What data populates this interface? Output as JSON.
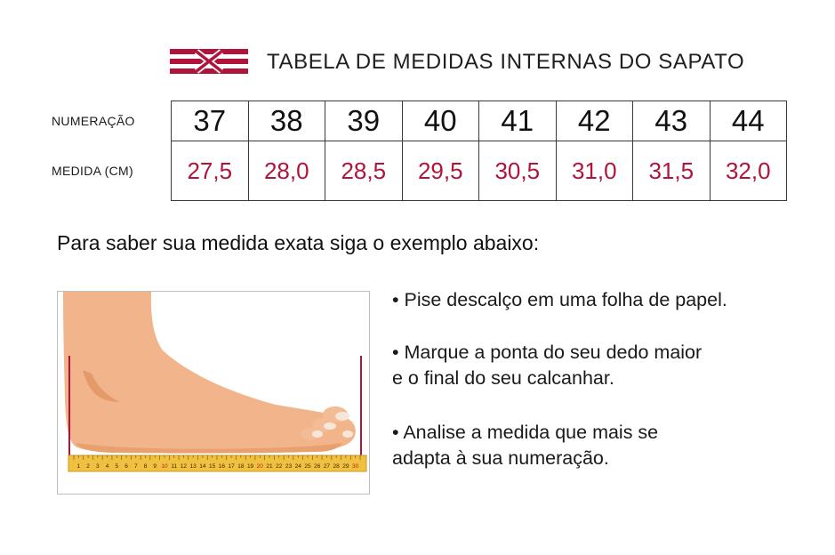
{
  "header": {
    "title": "TABELA DE MEDIDAS INTERNAS DO SAPATO",
    "logo_icon": "red-striped-x-logo",
    "accent_color": "#b0143a"
  },
  "table": {
    "row_labels": {
      "sizes": "NUMERAÇÃO",
      "measures": "MEDIDA (CM)"
    },
    "sizes": [
      "37",
      "38",
      "39",
      "40",
      "41",
      "42",
      "43",
      "44"
    ],
    "measures": [
      "27,5",
      "28,0",
      "28,5",
      "29,5",
      "30,5",
      "31,0",
      "31,5",
      "32,0"
    ]
  },
  "instruction": "Para saber sua medida exata siga o exemplo abaixo:",
  "illustration": {
    "icon": "foot-on-ruler-illustration",
    "ruler_numbers": [
      "1",
      "2",
      "3",
      "4",
      "5",
      "6",
      "7",
      "8",
      "9",
      "10",
      "11",
      "12",
      "13",
      "14",
      "15",
      "16",
      "17",
      "18",
      "19",
      "20",
      "21",
      "22",
      "23",
      "24",
      "25",
      "26",
      "27",
      "28",
      "29",
      "30"
    ]
  },
  "steps": [
    [
      "• Pise descalço em uma folha de papel."
    ],
    [
      "• Marque a ponta do seu dedo maior",
      "e o final do seu calcanhar."
    ],
    [
      "• Analise a medida que mais se",
      "adapta à sua numeração."
    ]
  ]
}
